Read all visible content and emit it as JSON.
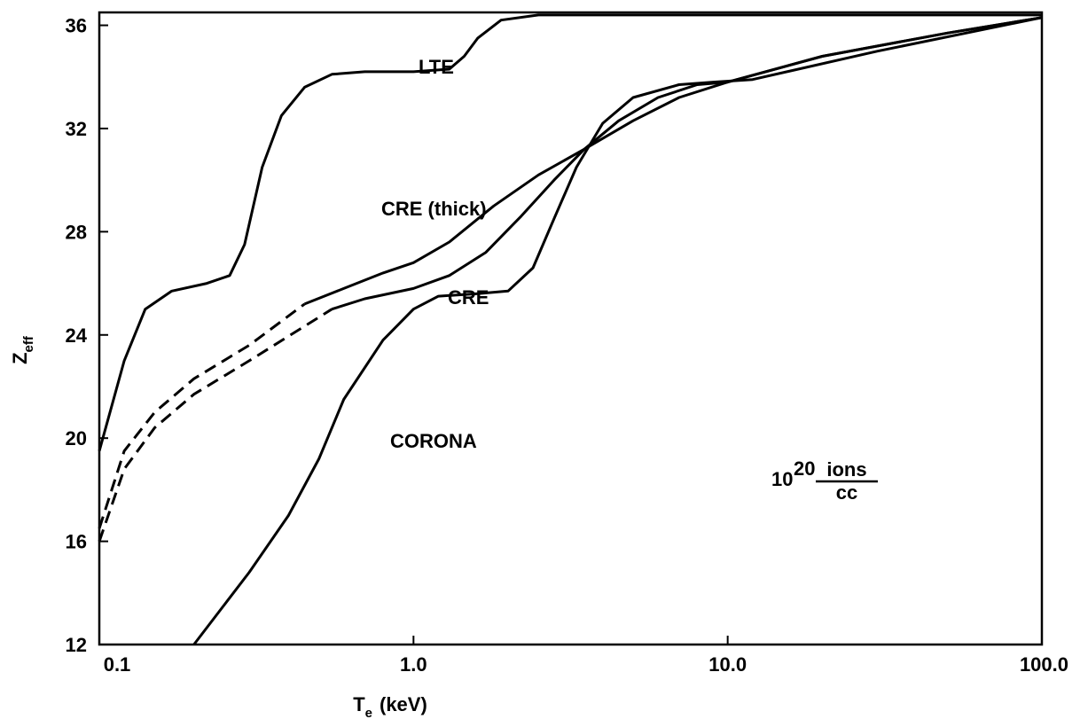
{
  "chart_data": {
    "type": "line",
    "x_label": {
      "main": "T",
      "sub": "e",
      "unit": "(keV)"
    },
    "y_label": {
      "main": "Z",
      "sub": "eff"
    },
    "annotation": {
      "base": "10",
      "exponent": "20",
      "numerator": "ions",
      "denominator": "cc"
    },
    "xscale": "log",
    "xlim": [
      0.1,
      100
    ],
    "ylim": [
      12,
      36.5
    ],
    "xticks": [
      0.1,
      {
        "value": 1,
        "label": "1.0"
      },
      {
        "value": 10,
        "label": "10.0"
      },
      {
        "value": 100,
        "label": "100.0"
      }
    ],
    "yticks": [
      12,
      16,
      20,
      24,
      28,
      32,
      36
    ],
    "grid": false,
    "color": "#000000",
    "series": [
      {
        "name": "LTE",
        "style": "solid",
        "x": [
          0.1,
          0.12,
          0.14,
          0.17,
          0.22,
          0.26,
          0.29,
          0.33,
          0.38,
          0.45,
          0.55,
          0.7,
          1.0,
          1.3,
          1.45,
          1.6,
          1.9,
          2.5,
          5,
          10,
          30,
          100
        ],
        "values": [
          19.5,
          23,
          25,
          25.7,
          26,
          26.3,
          27.5,
          30.5,
          32.5,
          33.6,
          34.1,
          34.2,
          34.2,
          34.3,
          34.8,
          35.5,
          36.2,
          36.4,
          36.4,
          36.4,
          36.4,
          36.4
        ]
      },
      {
        "style": "dashed",
        "x": [
          0.1,
          0.12,
          0.15,
          0.2,
          0.3,
          0.45
        ],
        "values": [
          16.5,
          19.5,
          21.0,
          22.3,
          23.6,
          25.2
        ]
      },
      {
        "name": "CRE (thick)",
        "style": "solid",
        "x": [
          0.45,
          0.6,
          0.8,
          1.0,
          1.3,
          1.8,
          2.5,
          3.5,
          5,
          7,
          10,
          20,
          50,
          100
        ],
        "values": [
          25.2,
          25.8,
          26.4,
          26.8,
          27.6,
          29,
          30.2,
          31.2,
          32.3,
          33.2,
          33.8,
          34.8,
          35.7,
          36.3
        ]
      },
      {
        "style": "dashed",
        "x": [
          0.1,
          0.12,
          0.15,
          0.2,
          0.3,
          0.55
        ],
        "values": [
          16.0,
          18.8,
          20.4,
          21.7,
          23.0,
          25.0
        ]
      },
      {
        "name": "CRE",
        "style": "solid",
        "x": [
          0.55,
          0.7,
          1.0,
          1.3,
          1.7,
          2.2,
          2.8,
          3.5,
          4.5,
          6,
          8,
          10,
          20,
          50,
          100
        ],
        "values": [
          25.0,
          25.4,
          25.8,
          26.3,
          27.2,
          28.6,
          30.0,
          31.2,
          32.3,
          33.2,
          33.7,
          33.8,
          34.8,
          35.7,
          36.3
        ]
      },
      {
        "name": "CORONA",
        "style": "solid",
        "x": [
          0.2,
          0.3,
          0.4,
          0.5,
          0.6,
          0.8,
          1.0,
          1.2,
          1.6,
          2.0,
          2.4,
          2.8,
          3.3,
          4.0,
          5,
          7,
          9,
          12,
          30,
          100
        ],
        "values": [
          12,
          14.8,
          17,
          19.2,
          21.5,
          23.8,
          25,
          25.5,
          25.6,
          25.7,
          26.6,
          28.5,
          30.5,
          32.2,
          33.2,
          33.7,
          33.8,
          33.9,
          35,
          36.3
        ]
      }
    ]
  }
}
